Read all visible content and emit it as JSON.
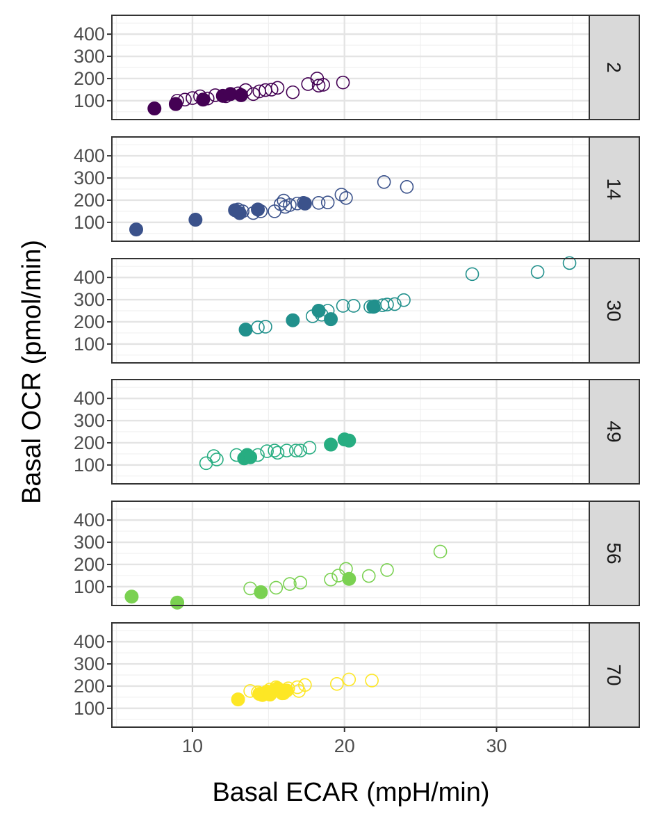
{
  "chart_data": {
    "type": "scatter",
    "xlabel": "Basal ECAR (mpH/min)",
    "ylabel": "Basal OCR (pmol/min)",
    "xlim": [
      4.7,
      36.1
    ],
    "ylim": [
      15,
      485
    ],
    "x_ticks": [
      10,
      20,
      30
    ],
    "y_ticks": [
      100,
      200,
      300,
      400
    ],
    "grid": true,
    "legend": "none",
    "facet_strip_position": "right",
    "panels": [
      {
        "label": "2",
        "color": "#440154",
        "filled": [
          [
            7.5,
            65
          ],
          [
            8.9,
            85
          ],
          [
            10.7,
            105
          ],
          [
            12.0,
            122
          ],
          [
            12.5,
            130
          ],
          [
            13.2,
            125
          ]
        ],
        "open": [
          [
            9.0,
            100
          ],
          [
            9.5,
            105
          ],
          [
            10.0,
            112
          ],
          [
            10.5,
            120
          ],
          [
            11.0,
            110
          ],
          [
            11.5,
            125
          ],
          [
            12.2,
            120
          ],
          [
            13.0,
            133
          ],
          [
            13.5,
            148
          ],
          [
            14.0,
            130
          ],
          [
            14.4,
            142
          ],
          [
            14.8,
            148
          ],
          [
            15.2,
            150
          ],
          [
            15.6,
            158
          ],
          [
            16.6,
            138
          ],
          [
            17.6,
            175
          ],
          [
            18.2,
            200
          ],
          [
            18.3,
            168
          ],
          [
            18.6,
            172
          ],
          [
            19.9,
            182
          ]
        ]
      },
      {
        "label": "14",
        "color": "#3b528b",
        "filled": [
          [
            6.3,
            68
          ],
          [
            10.2,
            112
          ],
          [
            12.8,
            155
          ],
          [
            13.1,
            142
          ],
          [
            14.3,
            158
          ],
          [
            17.4,
            185
          ]
        ],
        "open": [
          [
            13.0,
            158
          ],
          [
            13.3,
            150
          ],
          [
            14.0,
            142
          ],
          [
            14.5,
            150
          ],
          [
            15.4,
            150
          ],
          [
            15.8,
            182
          ],
          [
            16.0,
            198
          ],
          [
            16.1,
            170
          ],
          [
            16.4,
            178
          ],
          [
            16.9,
            185
          ],
          [
            17.3,
            188
          ],
          [
            18.3,
            188
          ],
          [
            18.9,
            190
          ],
          [
            19.8,
            225
          ],
          [
            20.1,
            210
          ],
          [
            22.6,
            282
          ],
          [
            24.1,
            260
          ]
        ]
      },
      {
        "label": "30",
        "color": "#21908c",
        "filled": [
          [
            13.5,
            165
          ],
          [
            16.6,
            207
          ],
          [
            18.3,
            250
          ],
          [
            19.1,
            212
          ],
          [
            21.9,
            268
          ]
        ],
        "open": [
          [
            14.3,
            175
          ],
          [
            14.8,
            178
          ],
          [
            17.9,
            225
          ],
          [
            18.5,
            232
          ],
          [
            18.9,
            250
          ],
          [
            19.9,
            272
          ],
          [
            20.6,
            272
          ],
          [
            21.7,
            268
          ],
          [
            22.0,
            270
          ],
          [
            22.5,
            275
          ],
          [
            22.8,
            278
          ],
          [
            23.3,
            280
          ],
          [
            23.9,
            298
          ],
          [
            28.4,
            415
          ],
          [
            32.7,
            425
          ],
          [
            34.8,
            465
          ]
        ]
      },
      {
        "label": "49",
        "color": "#27ad81",
        "filled": [
          [
            13.4,
            130
          ],
          [
            13.6,
            145
          ],
          [
            13.8,
            135
          ],
          [
            19.1,
            192
          ],
          [
            20.0,
            215
          ],
          [
            20.3,
            210
          ]
        ],
        "open": [
          [
            10.9,
            108
          ],
          [
            11.4,
            140
          ],
          [
            11.6,
            125
          ],
          [
            12.9,
            145
          ],
          [
            14.3,
            145
          ],
          [
            14.9,
            162
          ],
          [
            15.4,
            165
          ],
          [
            15.6,
            155
          ],
          [
            16.2,
            165
          ],
          [
            16.8,
            165
          ],
          [
            17.1,
            165
          ],
          [
            17.7,
            178
          ]
        ]
      },
      {
        "label": "56",
        "color": "#7ad151",
        "filled": [
          [
            6.0,
            55
          ],
          [
            9.0,
            28
          ],
          [
            14.5,
            75
          ],
          [
            20.3,
            135
          ]
        ],
        "open": [
          [
            13.8,
            92
          ],
          [
            15.5,
            95
          ],
          [
            16.4,
            112
          ],
          [
            17.1,
            118
          ],
          [
            19.1,
            132
          ],
          [
            19.6,
            150
          ],
          [
            20.1,
            180
          ],
          [
            21.6,
            148
          ],
          [
            22.8,
            175
          ],
          [
            26.3,
            258
          ]
        ]
      },
      {
        "label": "70",
        "color": "#fde725",
        "filled": [
          [
            13.0,
            140
          ],
          [
            14.4,
            165
          ],
          [
            14.6,
            160
          ],
          [
            14.9,
            175
          ],
          [
            15.1,
            162
          ],
          [
            15.4,
            182
          ],
          [
            15.6,
            190
          ],
          [
            15.9,
            168
          ],
          [
            16.2,
            180
          ]
        ],
        "open": [
          [
            13.8,
            178
          ],
          [
            14.3,
            172
          ],
          [
            14.8,
            165
          ],
          [
            15.1,
            185
          ],
          [
            15.5,
            195
          ],
          [
            16.0,
            168
          ],
          [
            16.3,
            190
          ],
          [
            16.9,
            195
          ],
          [
            17.0,
            178
          ],
          [
            17.4,
            205
          ],
          [
            19.5,
            210
          ],
          [
            20.3,
            230
          ],
          [
            21.8,
            225
          ]
        ]
      }
    ]
  }
}
